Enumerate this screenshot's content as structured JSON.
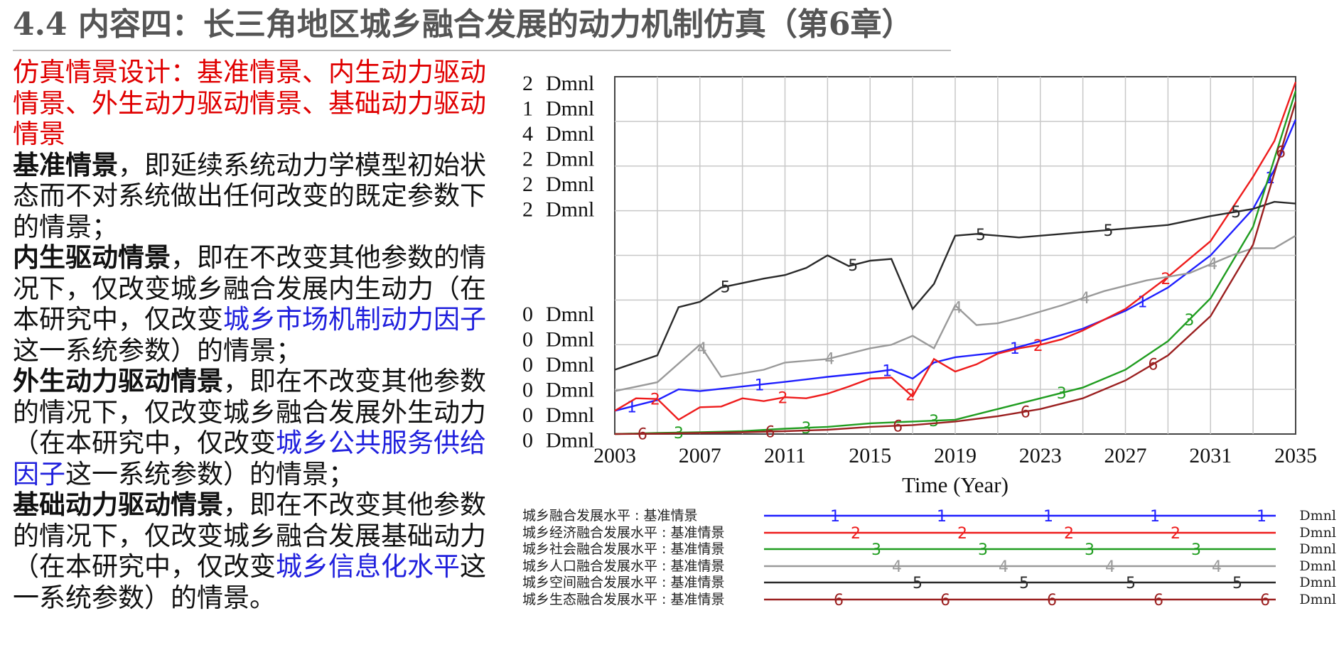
{
  "title": "4.4 内容四：长三角地区城乡融合发展的动力机制仿真（第6章）",
  "body": {
    "heading": "仿真情景设计：基准情景、内生动力驱动情景、外生动力驱动情景、基础动力驱动情景",
    "p1_kw": "基准情景",
    "p1_text": "，即延续系统动力学模型初始状态而不对系统做出任何改变的既定参数下的情景；",
    "p2_kw": "内生驱动情景",
    "p2_text_a": "，即在不改变其他参数的情况下，仅改变城乡融合发展内生动力（在本研究中，仅改变",
    "p2_highlight": "城乡市场机制动力因子",
    "p2_text_b": "这一系统参数）的情景；",
    "p3_kw": "外生动力驱动情景",
    "p3_text_a": "，即在不改变其他参数的情况下，仅改变城乡融合发展外生动力（在本研究中，仅改变",
    "p3_highlight": "城乡公共服务供给因子",
    "p3_text_b": "这一系统参数）的情景；",
    "p4_kw": "基础动力驱动情景",
    "p4_text_a": "，即在不改变其他参数的情况下，仅改变城乡融合发展基础动力（在本研究中，仅改变",
    "p4_highlight": "城乡信息化水平",
    "p4_text_b": "这一系统参数）的情景。"
  },
  "chart_data": {
    "type": "line",
    "xlabel": "Time (Year)",
    "x_ticks": [
      "2003",
      "2007",
      "2011",
      "2015",
      "2019",
      "2023",
      "2027",
      "2031",
      "2035"
    ],
    "xlim": [
      2003,
      2035
    ],
    "ylim": [
      0,
      1
    ],
    "grid": true,
    "y_labels_upper": [
      "2",
      "1",
      "4",
      "2",
      "2",
      "2"
    ],
    "y_labels_lower": [
      "0",
      "0",
      "0",
      "0",
      "0",
      "0"
    ],
    "y_unit": "Dmnl",
    "series": [
      {
        "marker": "1",
        "name": "城乡融合发展水平 : 基准情景",
        "unit": "Dmnl",
        "color": "#1f1fff",
        "x": [
          2003,
          2005,
          2006,
          2007,
          2009,
          2011,
          2013,
          2015,
          2016,
          2017,
          2018,
          2019,
          2021,
          2023,
          2025,
          2027,
          2029,
          2031,
          2033,
          2034,
          2035
        ],
        "y": [
          0.065,
          0.095,
          0.125,
          0.12,
          0.133,
          0.146,
          0.16,
          0.172,
          0.18,
          0.155,
          0.2,
          0.215,
          0.228,
          0.26,
          0.295,
          0.345,
          0.41,
          0.5,
          0.63,
          0.74,
          0.88
        ]
      },
      {
        "marker": "2",
        "name": "城乡经济融合发展水平 : 基准情景",
        "unit": "Dmnl",
        "color": "#ee1c1c",
        "x": [
          2003,
          2004,
          2005,
          2006,
          2007,
          2008,
          2009,
          2010,
          2011,
          2012,
          2013,
          2014,
          2015,
          2016,
          2017,
          2018,
          2019,
          2020,
          2021,
          2022,
          2023,
          2024,
          2025,
          2027,
          2029,
          2031,
          2033,
          2034,
          2035
        ],
        "y": [
          0.065,
          0.1,
          0.098,
          0.04,
          0.075,
          0.077,
          0.1,
          0.092,
          0.103,
          0.1,
          0.113,
          0.133,
          0.155,
          0.158,
          0.105,
          0.21,
          0.175,
          0.195,
          0.225,
          0.24,
          0.25,
          0.265,
          0.29,
          0.35,
          0.44,
          0.54,
          0.72,
          0.82,
          0.985
        ]
      },
      {
        "marker": "3",
        "name": "城乡社会融合发展水平 : 基准情景",
        "unit": "Dmnl",
        "color": "#209d20",
        "x": [
          2003,
          2005,
          2007,
          2009,
          2011,
          2013,
          2015,
          2017,
          2019,
          2021,
          2023,
          2025,
          2027,
          2029,
          2031,
          2033,
          2035
        ],
        "y": [
          0.0,
          0.003,
          0.005,
          0.008,
          0.015,
          0.02,
          0.03,
          0.035,
          0.04,
          0.07,
          0.1,
          0.13,
          0.18,
          0.26,
          0.38,
          0.58,
          0.96
        ]
      },
      {
        "marker": "4",
        "name": "城乡人口融合发展水平 : 基准情景",
        "unit": "Dmnl",
        "color": "#9a9a9a",
        "x": [
          2003,
          2005,
          2007,
          2008,
          2010,
          2011,
          2013,
          2015,
          2016,
          2017,
          2018,
          2019,
          2020,
          2021,
          2022,
          2024,
          2026,
          2028,
          2030,
          2032,
          2033,
          2034,
          2035
        ],
        "y": [
          0.12,
          0.145,
          0.25,
          0.16,
          0.18,
          0.2,
          0.21,
          0.24,
          0.25,
          0.275,
          0.24,
          0.36,
          0.305,
          0.31,
          0.325,
          0.36,
          0.4,
          0.43,
          0.45,
          0.5,
          0.52,
          0.52,
          0.555
        ]
      },
      {
        "marker": "5",
        "name": "城乡空间融合发展水平 : 基准情景",
        "unit": "Dmnl",
        "color": "#2a2a2a",
        "x": [
          2003,
          2005,
          2006,
          2007,
          2008,
          2010,
          2011,
          2012,
          2013,
          2014,
          2015,
          2016,
          2017,
          2018,
          2019,
          2020,
          2022,
          2024,
          2027,
          2029,
          2031,
          2033,
          2034,
          2035
        ],
        "y": [
          0.18,
          0.22,
          0.355,
          0.37,
          0.41,
          0.435,
          0.445,
          0.465,
          0.5,
          0.47,
          0.485,
          0.49,
          0.35,
          0.42,
          0.555,
          0.56,
          0.55,
          0.56,
          0.575,
          0.585,
          0.61,
          0.63,
          0.65,
          0.645
        ]
      },
      {
        "marker": "6",
        "name": "城乡生态融合发展水平 : 基准情景",
        "unit": "Dmnl",
        "color": "#9b2020",
        "x": [
          2003,
          2005,
          2007,
          2009,
          2011,
          2013,
          2015,
          2017,
          2019,
          2021,
          2023,
          2025,
          2027,
          2029,
          2031,
          2033,
          2035
        ],
        "y": [
          0.0,
          0.001,
          0.003,
          0.005,
          0.008,
          0.012,
          0.02,
          0.025,
          0.035,
          0.05,
          0.07,
          0.1,
          0.15,
          0.22,
          0.33,
          0.53,
          0.93
        ]
      }
    ]
  }
}
